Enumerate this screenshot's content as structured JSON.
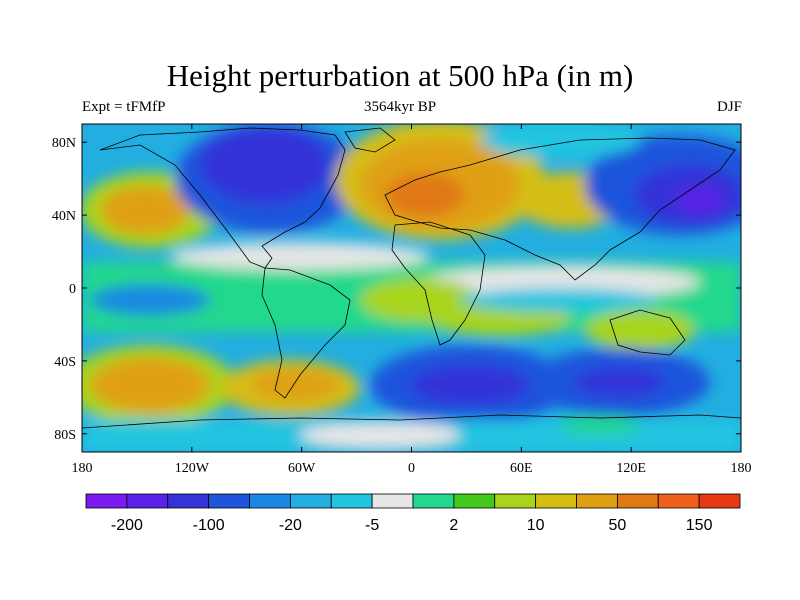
{
  "title": "Height perturbation at 500 hPa (in m)",
  "subtitle_left": "Expt = tFMfP",
  "subtitle_center": "3564kyr BP",
  "subtitle_right": "DJF",
  "lat_ticks": [
    {
      "label": "80N",
      "lat": 80
    },
    {
      "label": "40N",
      "lat": 40
    },
    {
      "label": "0",
      "lat": 0
    },
    {
      "label": "40S",
      "lat": -40
    },
    {
      "label": "80S",
      "lat": -80
    }
  ],
  "lon_ticks": [
    {
      "label": "180",
      "lon": -180
    },
    {
      "label": "120W",
      "lon": -120
    },
    {
      "label": "60W",
      "lon": -60
    },
    {
      "label": "0",
      "lon": 0
    },
    {
      "label": "60E",
      "lon": 60
    },
    {
      "label": "120E",
      "lon": 120
    },
    {
      "label": "180",
      "lon": 180
    }
  ],
  "colorbar": {
    "colors": [
      "#7a1cf0",
      "#5a22e6",
      "#3333d8",
      "#1f55dc",
      "#1a88e2",
      "#22aee0",
      "#22c5e0",
      "#e6e6e6",
      "#22d88c",
      "#44c81c",
      "#a8d41c",
      "#d4be12",
      "#e0a014",
      "#e07814",
      "#f0601c",
      "#e63a14"
    ],
    "labels": [
      {
        "text": "-200",
        "boundary": 1
      },
      {
        "text": "-100",
        "boundary": 3
      },
      {
        "text": "-20",
        "boundary": 5
      },
      {
        "text": "-5",
        "boundary": 7
      },
      {
        "text": "2",
        "boundary": 9
      },
      {
        "text": "10",
        "boundary": 11
      },
      {
        "text": "50",
        "boundary": 13
      },
      {
        "text": "150",
        "boundary": 15
      }
    ]
  }
}
